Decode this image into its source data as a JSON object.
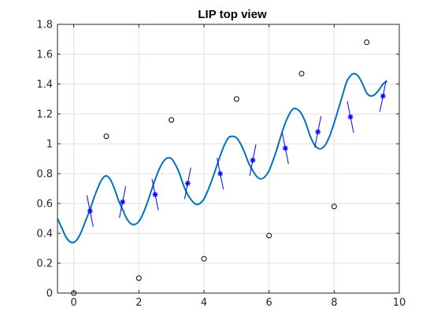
{
  "chart_data": {
    "type": "line",
    "title": "LIP top view",
    "xlabel": "",
    "ylabel": "",
    "xlim": [
      -0.5,
      10
    ],
    "ylim": [
      0,
      1.8
    ],
    "xticks": [
      0,
      2,
      4,
      6,
      8,
      10
    ],
    "yticks": [
      0,
      0.2,
      0.4,
      0.6,
      0.8,
      1,
      1.2,
      1.4,
      1.6,
      1.8
    ],
    "xtick_labels": [
      "0",
      "2",
      "4",
      "6",
      "8",
      "10"
    ],
    "ytick_labels": [
      "0",
      "0.2",
      "0.4",
      "0.6",
      "0.8",
      "1",
      "1.2",
      "1.4",
      "1.6",
      "1.8"
    ],
    "grid": true,
    "colors": {
      "trajectory": "#0072bd",
      "footsteps": "#000000",
      "step_markers": "#0000ff"
    },
    "series": [
      {
        "kind": "line",
        "x": [
          -0.5,
          -0.375,
          -0.25,
          -0.125,
          0,
          0.125,
          0.25,
          0.375,
          0.5,
          0.625,
          0.75,
          0.875,
          1,
          1.125,
          1.25,
          1.375,
          1.5,
          1.625,
          1.75,
          1.875,
          2,
          2.125,
          2.25,
          2.375,
          2.5,
          2.625,
          2.75,
          2.875,
          3,
          3.125,
          3.25,
          3.375,
          3.5,
          3.625,
          3.75,
          3.875,
          4,
          4.125,
          4.25,
          4.375,
          4.5,
          4.625,
          4.75,
          4.875,
          5,
          5.125,
          5.25,
          5.375,
          5.5,
          5.625,
          5.75,
          5.875,
          6,
          6.125,
          6.25,
          6.375,
          6.5,
          6.625,
          6.75,
          6.875,
          7,
          7.125,
          7.25,
          7.375,
          7.5,
          7.625,
          7.75,
          7.875,
          8,
          8.125,
          8.25,
          8.375,
          8.5,
          8.625,
          8.75,
          8.875,
          9,
          9.125,
          9.25,
          9.375,
          9.5,
          9.625
        ],
        "y": [
          0.5,
          0.44,
          0.38,
          0.345,
          0.34,
          0.365,
          0.42,
          0.49,
          0.56,
          0.64,
          0.71,
          0.765,
          0.785,
          0.76,
          0.7,
          0.62,
          0.56,
          0.5,
          0.465,
          0.46,
          0.48,
          0.53,
          0.6,
          0.68,
          0.76,
          0.83,
          0.88,
          0.905,
          0.9,
          0.86,
          0.8,
          0.72,
          0.66,
          0.62,
          0.595,
          0.6,
          0.63,
          0.69,
          0.76,
          0.84,
          0.92,
          0.99,
          1.04,
          1.05,
          1.04,
          1.0,
          0.94,
          0.87,
          0.82,
          0.78,
          0.765,
          0.78,
          0.82,
          0.89,
          0.97,
          1.06,
          1.14,
          1.2,
          1.235,
          1.23,
          1.2,
          1.14,
          1.06,
          1.0,
          0.97,
          0.97,
          1.0,
          1.06,
          1.14,
          1.23,
          1.32,
          1.41,
          1.455,
          1.47,
          1.45,
          1.4,
          1.34,
          1.32,
          1.33,
          1.36,
          1.4,
          1.42
        ]
      },
      {
        "kind": "markers-circle",
        "x": [
          0,
          1,
          2,
          3,
          4,
          5,
          6,
          7,
          8,
          9
        ],
        "y": [
          0,
          1.05,
          0.1,
          1.16,
          0.23,
          1.3,
          0.385,
          1.47,
          0.58,
          1.68
        ]
      },
      {
        "kind": "markers-star",
        "x": [
          0.5,
          1.5,
          2.5,
          3.5,
          4.5,
          5.5,
          6.5,
          7.5,
          8.5,
          9.5
        ],
        "y": [
          0.55,
          0.61,
          0.66,
          0.735,
          0.8,
          0.89,
          0.97,
          1.08,
          1.18,
          1.32
        ]
      }
    ]
  }
}
